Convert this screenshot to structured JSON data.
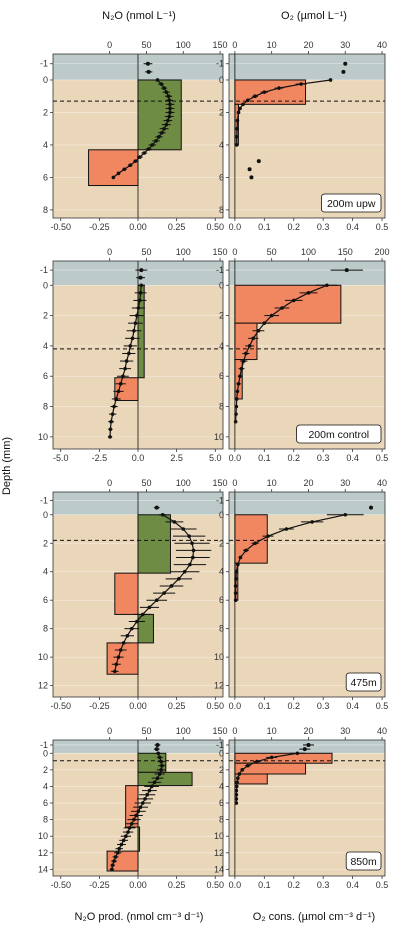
{
  "figure": {
    "top_left_title": "N₂O (nmol L⁻¹)",
    "top_right_title": "O₂ (µmol L⁻¹)",
    "y_axis_label": "Depth (mm)",
    "bottom_left_title": "N₂O prod. (nmol cm⁻³ d⁻¹)",
    "bottom_right_title": "O₂ cons. (µmol cm⁻³ d⁻¹)"
  },
  "colors": {
    "water": "#bccaca",
    "sediment": "#ead6b8",
    "production": "#6f8c44",
    "consumption": "#f08761",
    "line": "#111111",
    "border": "#333333"
  },
  "chart_data": [
    {
      "type": "line",
      "site": "200m upw",
      "variable": "N2O",
      "ylim": [
        8.5,
        -1.6
      ],
      "yticks": [
        -1,
        0,
        2,
        4,
        6,
        8
      ],
      "water_interface": 0,
      "dashed_line_depth": 1.3,
      "bottom_axis": {
        "lim": [
          -0.55,
          0.55
        ],
        "ticks": [
          -0.5,
          -0.25,
          0,
          0.25,
          0.5
        ],
        "tick_labels": [
          "-0.50",
          "-0.25",
          "0.00",
          "0.25",
          "0.50"
        ]
      },
      "top_axis": {
        "lim": [
          -77,
          154
        ],
        "ticks": [
          0,
          50,
          100,
          150
        ],
        "tick_labels": [
          "0",
          "50",
          "100",
          "150"
        ]
      },
      "rate_bars": [
        {
          "top": 0,
          "bottom": 4.3,
          "value": 0.28
        },
        {
          "top": 4.3,
          "bottom": 6.5,
          "value": -0.32
        }
      ],
      "water_points": [
        {
          "depth": -1.0,
          "conc": 52,
          "err": 6
        },
        {
          "depth": -0.5,
          "conc": 53,
          "err": 5
        }
      ],
      "profile": {
        "depth": [
          0,
          0.25,
          0.5,
          0.75,
          1,
          1.25,
          1.5,
          1.75,
          2,
          2.25,
          2.5,
          2.75,
          3,
          3.25,
          3.5,
          3.75,
          4,
          4.25,
          4.5,
          4.75,
          5,
          5.25,
          5.5,
          5.75,
          6
        ],
        "conc": [
          65,
          70,
          74,
          77,
          80,
          81,
          82,
          82,
          82,
          81,
          79,
          77,
          74,
          71,
          67,
          63,
          58,
          53,
          47,
          41,
          35,
          28,
          20,
          12,
          5
        ],
        "err": [
          3,
          4,
          4,
          5,
          5,
          5,
          6,
          6,
          6,
          6,
          6,
          6,
          6,
          5,
          5,
          5,
          5,
          4,
          4,
          4,
          3,
          3,
          3,
          2,
          2
        ]
      }
    },
    {
      "type": "line",
      "site": "200m upw",
      "variable": "O2",
      "ylim": [
        8.5,
        -1.6
      ],
      "yticks": [
        -1,
        0,
        2,
        4,
        6,
        8
      ],
      "water_interface": 0,
      "dashed_line_depth": 1.3,
      "bottom_axis": {
        "lim": [
          -0.02,
          0.51
        ],
        "ticks": [
          0,
          0.1,
          0.2,
          0.3,
          0.4,
          0.5
        ],
        "tick_labels": [
          "0.0",
          "0.1",
          "0.2",
          "0.3",
          "0.4",
          "0.5"
        ]
      },
      "top_axis": {
        "lim": [
          -1.6,
          40.8
        ],
        "ticks": [
          0,
          10,
          20,
          30,
          40
        ],
        "tick_labels": [
          "0",
          "10",
          "20",
          "30",
          "40"
        ]
      },
      "rate_bars": [
        {
          "top": 0,
          "bottom": 1.5,
          "value": 0.24
        },
        {
          "top": 1.5,
          "bottom": 4.0,
          "value": 0.012
        }
      ],
      "water_points": [
        {
          "depth": -1.0,
          "conc": 30,
          "err": 0
        },
        {
          "depth": -0.5,
          "conc": 29.5,
          "err": 0
        }
      ],
      "profile": {
        "depth": [
          0,
          0.25,
          0.5,
          0.75,
          1,
          1.25,
          1.5,
          1.75,
          2,
          2.5,
          3,
          3.5,
          4
        ],
        "conc": [
          26,
          18,
          12,
          8,
          5.5,
          3.5,
          2.2,
          1.4,
          1.0,
          0.7,
          0.6,
          0.5,
          0.5
        ],
        "err": [
          0,
          1.5,
          1.2,
          1,
          0.8,
          0.5,
          0.4,
          0.3,
          0.2,
          0.2,
          0.2,
          0.2,
          0.2
        ]
      },
      "scatter_points": [
        {
          "depth": 5.0,
          "conc": 6.5
        },
        {
          "depth": 5.5,
          "conc": 4.0
        },
        {
          "depth": 6.0,
          "conc": 4.5
        }
      ],
      "label": "200m upw"
    },
    {
      "type": "line",
      "site": "200m control",
      "variable": "N2O",
      "ylim": [
        10.8,
        -1.6
      ],
      "yticks": [
        -1,
        0,
        2,
        4,
        6,
        8,
        10
      ],
      "water_interface": 0,
      "dashed_line_depth": 4.2,
      "bottom_axis": {
        "lim": [
          -5.5,
          5.5
        ],
        "ticks": [
          -5,
          -2.5,
          0,
          2.5,
          5
        ],
        "tick_labels": [
          "-5.0",
          "-2.5",
          "0.0",
          "2.5",
          "5.0"
        ]
      },
      "top_axis": {
        "lim": [
          -77,
          154
        ],
        "ticks": [
          0,
          50,
          100,
          150
        ],
        "tick_labels": [
          "0",
          "50",
          "100",
          "150"
        ]
      },
      "rate_bars": [
        {
          "top": 0,
          "bottom": 6.1,
          "value": 0.4
        },
        {
          "top": 6.1,
          "bottom": 7.6,
          "value": -1.5
        }
      ],
      "water_points": [
        {
          "depth": -1.0,
          "conc": 43,
          "err": 8
        },
        {
          "depth": -0.5,
          "conc": 42,
          "err": 6
        }
      ],
      "profile": {
        "depth": [
          0,
          0.5,
          1,
          1.5,
          2,
          2.5,
          3,
          3.5,
          4,
          4.5,
          5,
          5.5,
          6,
          6.5,
          7,
          7.5,
          8,
          8.5,
          9,
          9.5,
          10
        ],
        "conc": [
          43,
          42,
          41,
          39,
          37,
          35,
          33,
          31,
          28,
          26,
          23,
          21,
          18,
          15,
          12,
          9,
          6,
          4,
          2,
          1,
          0.5
        ],
        "err": [
          5,
          8,
          9,
          9,
          10,
          10,
          10,
          10,
          9,
          9,
          9,
          8,
          8,
          7,
          7,
          6,
          5,
          5,
          4,
          3,
          3
        ]
      }
    },
    {
      "type": "line",
      "site": "200m control",
      "variable": "O2",
      "ylim": [
        10.8,
        -1.6
      ],
      "yticks": [
        -1,
        0,
        2,
        4,
        6,
        8,
        10
      ],
      "water_interface": 0,
      "dashed_line_depth": 4.2,
      "bottom_axis": {
        "lim": [
          -0.02,
          0.51
        ],
        "ticks": [
          0,
          0.1,
          0.2,
          0.3,
          0.4,
          0.5
        ],
        "tick_labels": [
          "0.0",
          "0.1",
          "0.2",
          "0.3",
          "0.4",
          "0.5"
        ]
      },
      "top_axis": {
        "lim": [
          -8,
          204
        ],
        "ticks": [
          0,
          50,
          100,
          150,
          200
        ],
        "tick_labels": [
          "0",
          "50",
          "100",
          "150",
          "200"
        ]
      },
      "rate_bars": [
        {
          "top": 0,
          "bottom": 2.5,
          "value": 0.36
        },
        {
          "top": 2.5,
          "bottom": 4.9,
          "value": 0.075
        },
        {
          "top": 4.9,
          "bottom": 7.5,
          "value": 0.025
        }
      ],
      "water_points": [
        {
          "depth": -1.0,
          "conc": 152,
          "err": 22
        }
      ],
      "profile": {
        "depth": [
          0,
          0.5,
          1,
          1.5,
          2,
          2.5,
          3,
          3.5,
          4,
          4.5,
          5,
          5.5,
          6,
          6.5,
          7,
          7.5,
          8,
          8.5,
          9
        ],
        "conc": [
          125,
          100,
          80,
          64,
          50,
          40,
          32,
          25,
          20,
          15,
          12,
          9,
          7,
          5,
          3.5,
          2.5,
          2,
          1.5,
          1
        ],
        "err": [
          15,
          12,
          12,
          10,
          10,
          9,
          8,
          7,
          6,
          5,
          5,
          4,
          3,
          3,
          2,
          2,
          1,
          1,
          1
        ]
      },
      "label": "200m control"
    },
    {
      "type": "line",
      "site": "475m",
      "variable": "N2O",
      "ylim": [
        12.8,
        -1.6
      ],
      "yticks": [
        -1,
        0,
        2,
        4,
        6,
        8,
        10,
        12
      ],
      "water_interface": 0,
      "dashed_line_depth": 1.8,
      "bottom_axis": {
        "lim": [
          -0.55,
          0.55
        ],
        "ticks": [
          -0.5,
          -0.25,
          0,
          0.25,
          0.5
        ],
        "tick_labels": [
          "-0.50",
          "-0.25",
          "0.00",
          "0.25",
          "0.50"
        ]
      },
      "top_axis": {
        "lim": [
          -77,
          154
        ],
        "ticks": [
          0,
          50,
          100,
          150
        ],
        "tick_labels": [
          "0",
          "50",
          "100",
          "150"
        ]
      },
      "rate_bars": [
        {
          "top": 0,
          "bottom": 4.1,
          "value": 0.21
        },
        {
          "top": 4.1,
          "bottom": 7.0,
          "value": -0.15
        },
        {
          "top": 7.0,
          "bottom": 9.0,
          "value": 0.1
        },
        {
          "top": 9.0,
          "bottom": 11.2,
          "value": -0.2
        }
      ],
      "water_points": [
        {
          "depth": -0.5,
          "conc": 64,
          "err": 4
        }
      ],
      "profile": {
        "depth": [
          0,
          0.5,
          1,
          1.5,
          2,
          2.5,
          3,
          3.5,
          4,
          4.5,
          5,
          5.5,
          6,
          6.5,
          7,
          7.5,
          8,
          8.5,
          9,
          9.5,
          10,
          10.5,
          11
        ],
        "conc": [
          72,
          88,
          100,
          108,
          112,
          114,
          113,
          109,
          102,
          94,
          84,
          74,
          64,
          54,
          45,
          37,
          30,
          24,
          19,
          15,
          12,
          9,
          7
        ],
        "err": [
          5,
          12,
          18,
          22,
          24,
          24,
          23,
          22,
          20,
          18,
          16,
          15,
          14,
          13,
          12,
          11,
          10,
          9,
          8,
          8,
          7,
          6,
          5
        ]
      }
    },
    {
      "type": "line",
      "site": "475m",
      "variable": "O2",
      "ylim": [
        12.8,
        -1.6
      ],
      "yticks": [
        -1,
        0,
        2,
        4,
        6,
        8,
        10,
        12
      ],
      "water_interface": 0,
      "dashed_line_depth": 1.8,
      "bottom_axis": {
        "lim": [
          -0.02,
          0.51
        ],
        "ticks": [
          0,
          0.1,
          0.2,
          0.3,
          0.4,
          0.5
        ],
        "tick_labels": [
          "0.0",
          "0.1",
          "0.2",
          "0.3",
          "0.4",
          "0.5"
        ]
      },
      "top_axis": {
        "lim": [
          -1.6,
          40.8
        ],
        "ticks": [
          0,
          10,
          20,
          30,
          40
        ],
        "tick_labels": [
          "0",
          "10",
          "20",
          "30",
          "40"
        ]
      },
      "rate_bars": [
        {
          "top": 0,
          "bottom": 3.4,
          "value": 0.11
        },
        {
          "top": 3.4,
          "bottom": 6.0,
          "value": 0.01
        }
      ],
      "water_points": [
        {
          "depth": -0.5,
          "conc": 37,
          "err": 0
        }
      ],
      "profile": {
        "depth": [
          0,
          0.5,
          1,
          1.5,
          2,
          2.5,
          3,
          3.5,
          4,
          4.5,
          5,
          5.5,
          6
        ],
        "conc": [
          30,
          21,
          14,
          9,
          5.5,
          3,
          1.5,
          0.8,
          0.4,
          0.3,
          0.2,
          0.2,
          0.2
        ],
        "err": [
          5,
          3,
          2,
          1.5,
          1,
          0.8,
          0.5,
          0.3,
          0.2,
          0.2,
          0.1,
          0.1,
          0.1
        ]
      },
      "label": "475m"
    },
    {
      "type": "line",
      "site": "850m",
      "variable": "N2O",
      "ylim": [
        14.8,
        -1.6
      ],
      "yticks": [
        -1,
        0,
        2,
        4,
        6,
        8,
        10,
        12,
        14
      ],
      "water_interface": 0,
      "dashed_line_depth": 0.9,
      "bottom_axis": {
        "lim": [
          -0.55,
          0.55
        ],
        "ticks": [
          -0.5,
          -0.25,
          0,
          0.25,
          0.5
        ],
        "tick_labels": [
          "-0.50",
          "-0.25",
          "0.00",
          "0.25",
          "0.50"
        ]
      },
      "top_axis": {
        "lim": [
          -77,
          154
        ],
        "ticks": [
          0,
          50,
          100,
          150
        ],
        "tick_labels": [
          "0",
          "50",
          "100",
          "150"
        ]
      },
      "rate_bars": [
        {
          "top": 0,
          "bottom": 2.3,
          "value": 0.18
        },
        {
          "top": 2.3,
          "bottom": 3.9,
          "value": 0.35
        },
        {
          "top": 3.9,
          "bottom": 8.9,
          "value": -0.08
        },
        {
          "top": 8.9,
          "bottom": 11.8,
          "value": 0.01
        },
        {
          "top": 11.8,
          "bottom": 14.2,
          "value": -0.2
        }
      ],
      "water_points": [
        {
          "depth": -1.0,
          "conc": 65,
          "err": 4
        },
        {
          "depth": -0.5,
          "conc": 64,
          "err": 4
        }
      ],
      "profile": {
        "depth": [
          0,
          0.5,
          1,
          1.5,
          2,
          2.5,
          3,
          3.5,
          4,
          4.5,
          5,
          5.5,
          6,
          6.5,
          7,
          7.5,
          8,
          8.5,
          9,
          9.5,
          10,
          10.5,
          11,
          11.5,
          12,
          12.5,
          13,
          13.5,
          14
        ],
        "conc": [
          66,
          68,
          70,
          71,
          70,
          68,
          65,
          61,
          57,
          54,
          51,
          48,
          45,
          42,
          39,
          36,
          33,
          30,
          27,
          25,
          22,
          19,
          16,
          13,
          11,
          8,
          6,
          4,
          3
        ],
        "err": [
          3,
          4,
          5,
          5,
          6,
          7,
          8,
          9,
          10,
          10,
          11,
          11,
          11,
          10,
          10,
          9,
          9,
          8,
          8,
          7,
          7,
          6,
          6,
          5,
          5,
          4,
          4,
          3,
          3
        ]
      }
    },
    {
      "type": "line",
      "site": "850m",
      "variable": "O2",
      "ylim": [
        14.8,
        -1.6
      ],
      "yticks": [
        -1,
        0,
        2,
        4,
        6,
        8,
        10,
        12,
        14
      ],
      "water_interface": 0,
      "dashed_line_depth": 0.9,
      "bottom_axis": {
        "lim": [
          -0.02,
          0.51
        ],
        "ticks": [
          0,
          0.1,
          0.2,
          0.3,
          0.4,
          0.5
        ],
        "tick_labels": [
          "0.0",
          "0.1",
          "0.2",
          "0.3",
          "0.4",
          "0.5"
        ]
      },
      "top_axis": {
        "lim": [
          -1.6,
          40.8
        ],
        "ticks": [
          0,
          10,
          20,
          30,
          40
        ],
        "tick_labels": [
          "0",
          "10",
          "20",
          "30",
          "40"
        ]
      },
      "rate_bars": [
        {
          "top": 0,
          "bottom": 1.2,
          "value": 0.33
        },
        {
          "top": 1.2,
          "bottom": 2.5,
          "value": 0.24
        },
        {
          "top": 2.5,
          "bottom": 3.7,
          "value": 0.11
        }
      ],
      "water_points": [
        {
          "depth": -1.0,
          "conc": 20,
          "err": 1.5
        },
        {
          "depth": -0.5,
          "conc": 19,
          "err": 1.5
        }
      ],
      "profile": {
        "depth": [
          0,
          0.5,
          1,
          1.5,
          2,
          2.5,
          3,
          3.5,
          4,
          4.5,
          5,
          5.5,
          6
        ],
        "conc": [
          17,
          10,
          6,
          3.5,
          2,
          1.2,
          0.8,
          0.6,
          0.5,
          0.4,
          0.4,
          0.4,
          0.4
        ],
        "err": [
          2,
          1.5,
          1,
          0.8,
          0.5,
          0.4,
          0.3,
          0.2,
          0.2,
          0.1,
          0.1,
          0.1,
          0.1
        ]
      },
      "label": "850m"
    }
  ]
}
